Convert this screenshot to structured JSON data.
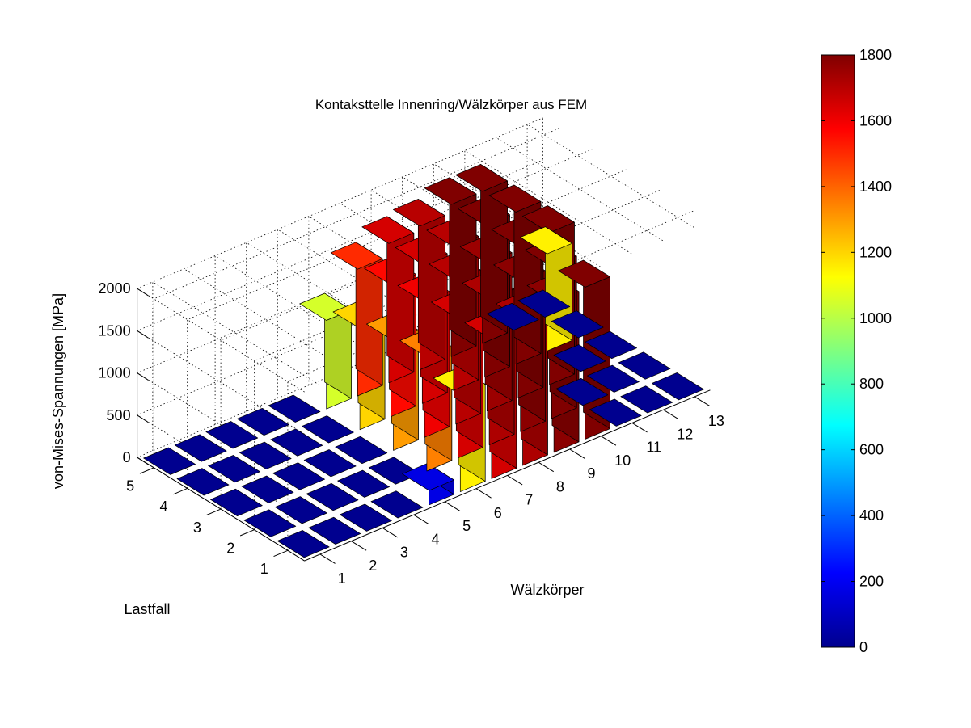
{
  "chart_data": {
    "type": "bar3",
    "title": "Kontaksttelle Innenring/Wälzkörper aus FEM",
    "xlabel": "Wälzkörper",
    "ylabel": "Lastfall",
    "zlabel": "von-Mises-Spannungen [MPa]",
    "x_categories": [
      "1",
      "2",
      "3",
      "4",
      "5",
      "6",
      "7",
      "8",
      "9",
      "10",
      "11",
      "12",
      "13"
    ],
    "y_categories": [
      "1",
      "2",
      "3",
      "4",
      "5"
    ],
    "zlim": [
      0,
      2000
    ],
    "zticks": [
      "0",
      "500",
      "1000",
      "1500",
      "2000"
    ],
    "grid": true,
    "colormap": "jet",
    "colorbar": {
      "clim": [
        0,
        1800
      ],
      "ticks": [
        "0",
        "200",
        "400",
        "600",
        "800",
        "1000",
        "1200",
        "1400",
        "1600",
        "1800"
      ],
      "placement": "right"
    },
    "values": [
      [
        0,
        0,
        0,
        0,
        170,
        1150,
        1650,
        1720,
        1780,
        1800,
        0,
        0,
        0
      ],
      [
        0,
        0,
        0,
        0,
        0,
        1350,
        1650,
        1720,
        1780,
        1800,
        0,
        0,
        0
      ],
      [
        0,
        0,
        0,
        0,
        0,
        1300,
        1600,
        1700,
        1750,
        1800,
        1800,
        0,
        0
      ],
      [
        0,
        0,
        0,
        0,
        0,
        1200,
        1560,
        1650,
        1700,
        1800,
        1800,
        1150,
        0
      ],
      [
        0,
        0,
        0,
        0,
        0,
        1050,
        1500,
        1650,
        1700,
        1800,
        1800,
        0,
        0
      ]
    ]
  }
}
